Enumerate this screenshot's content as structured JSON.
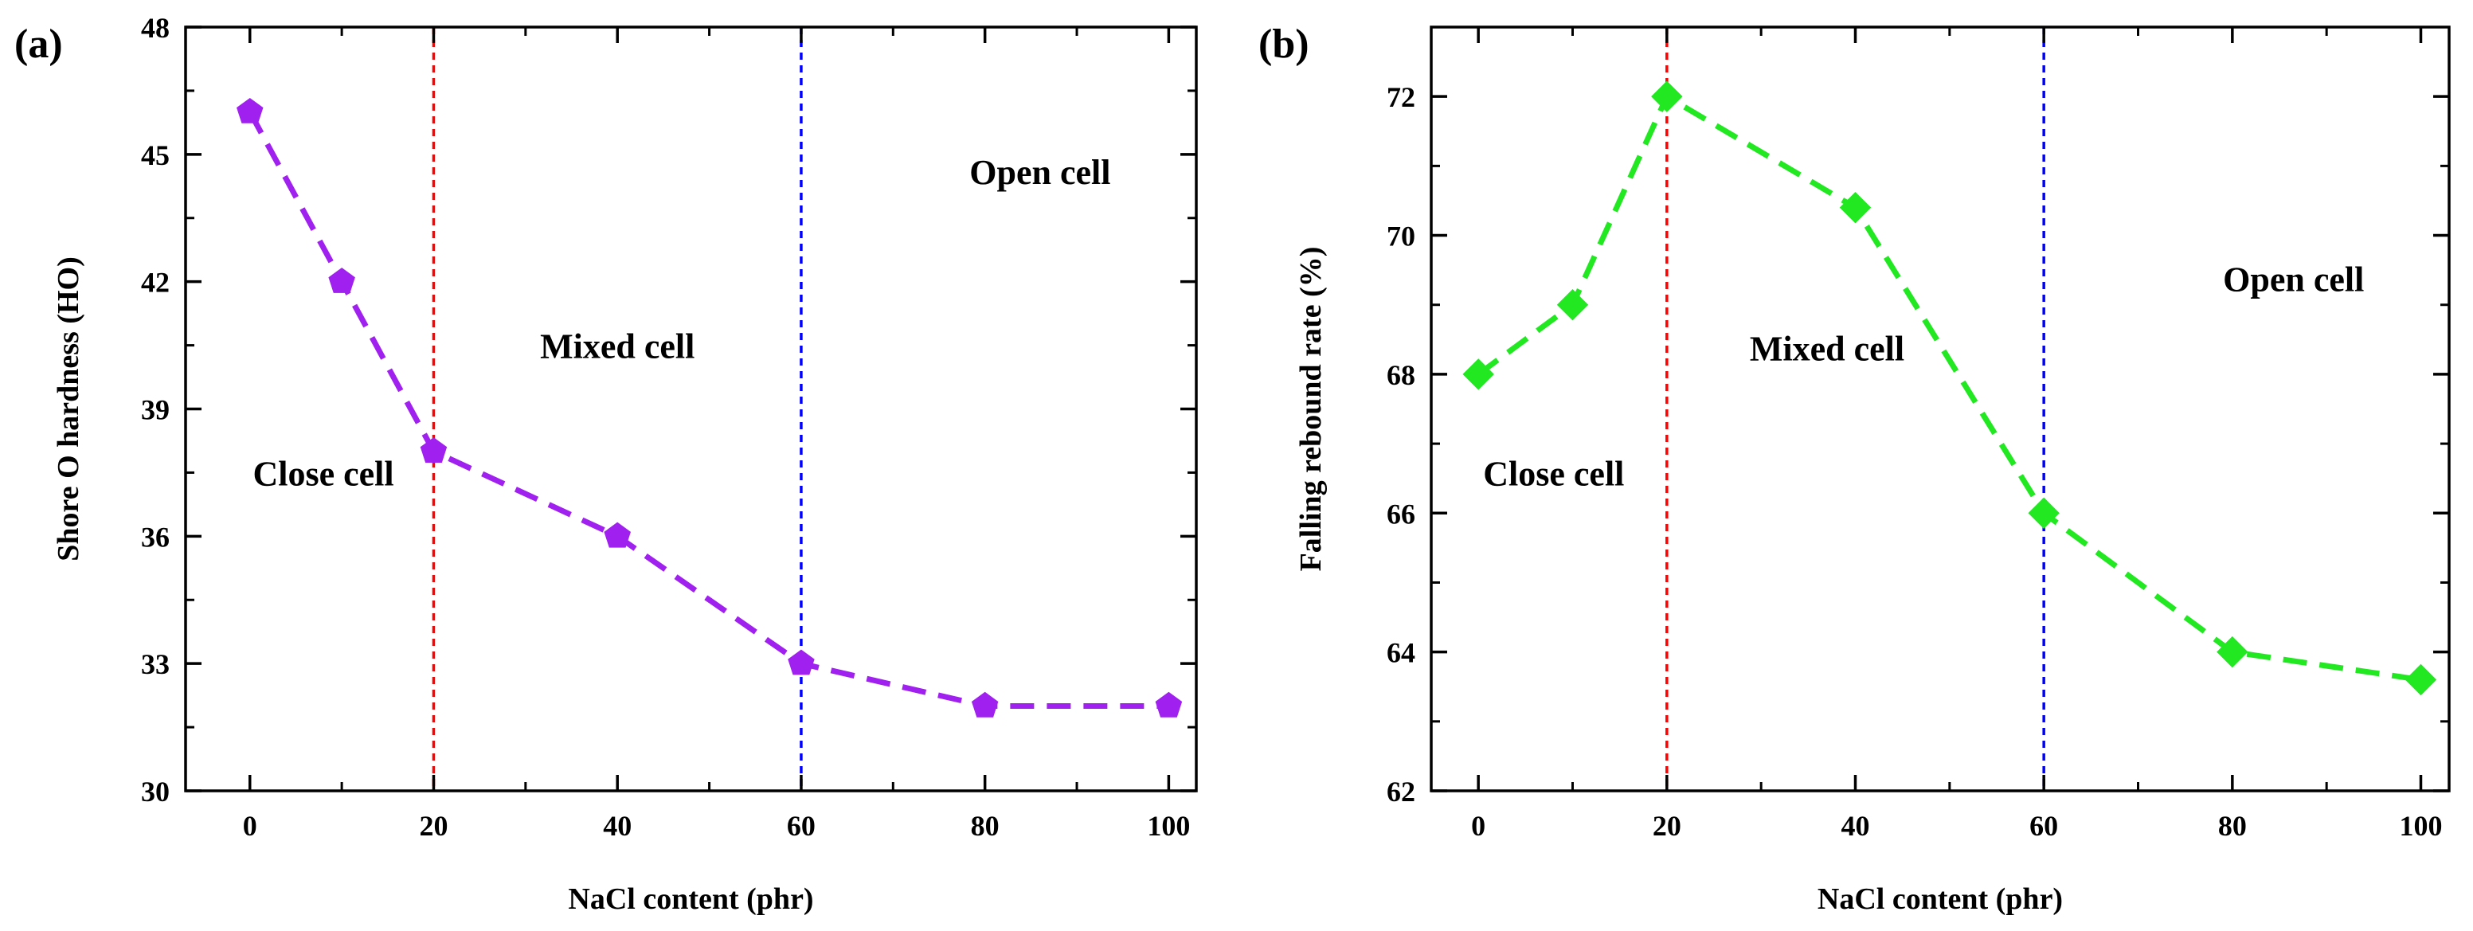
{
  "chart_data": [
    {
      "panel_label": "(a)",
      "type": "line",
      "xlabel": "NaCl content (phr)",
      "ylabel": "Shore O hardness (HO)",
      "xlim": [
        -7,
        103
      ],
      "ylim": [
        30,
        48
      ],
      "xticks": [
        0,
        20,
        40,
        60,
        80,
        100
      ],
      "yticks": [
        30,
        33,
        36,
        39,
        42,
        45,
        48
      ],
      "x": [
        0,
        10,
        20,
        40,
        60,
        80,
        100
      ],
      "series": [
        {
          "values": [
            46,
            42,
            38,
            36,
            33,
            32,
            32
          ],
          "color": "#a020f0",
          "marker": "pentagon",
          "line_style": "dashed"
        }
      ],
      "vlines": [
        {
          "x": 20,
          "color": "#ff0000",
          "style": "dotted"
        },
        {
          "x": 60,
          "color": "#0000ff",
          "style": "dotted"
        }
      ],
      "annotations": [
        {
          "text": "Close cell",
          "x": 8,
          "y": 37.2
        },
        {
          "text": "Mixed cell",
          "x": 40,
          "y": 40.2
        },
        {
          "text": "Open cell",
          "x": 86,
          "y": 44.3
        }
      ],
      "grid": false,
      "legend": "none"
    },
    {
      "panel_label": "(b)",
      "type": "line",
      "xlabel": "NaCl content (phr)",
      "ylabel": "Falling rebound rate (%)",
      "xlim": [
        -5,
        103
      ],
      "ylim": [
        62,
        73
      ],
      "xticks": [
        0,
        20,
        40,
        60,
        80,
        100
      ],
      "yticks": [
        62,
        64,
        66,
        68,
        70,
        72
      ],
      "x": [
        0,
        10,
        20,
        40,
        60,
        80,
        100
      ],
      "series": [
        {
          "values": [
            68,
            69,
            72,
            70.4,
            66,
            64,
            63.6
          ],
          "color": "#22e822",
          "marker": "diamond",
          "line_style": "dashed"
        }
      ],
      "vlines": [
        {
          "x": 20,
          "color": "#ff0000",
          "style": "dotted"
        },
        {
          "x": 60,
          "color": "#0000ff",
          "style": "dotted"
        }
      ],
      "annotations": [
        {
          "text": "Close cell",
          "x": 8,
          "y": 66.4
        },
        {
          "text": "Mixed cell",
          "x": 37,
          "y": 68.2
        },
        {
          "text": "Open cell",
          "x": 86.5,
          "y": 69.2
        }
      ],
      "grid": false,
      "legend": "none"
    }
  ]
}
